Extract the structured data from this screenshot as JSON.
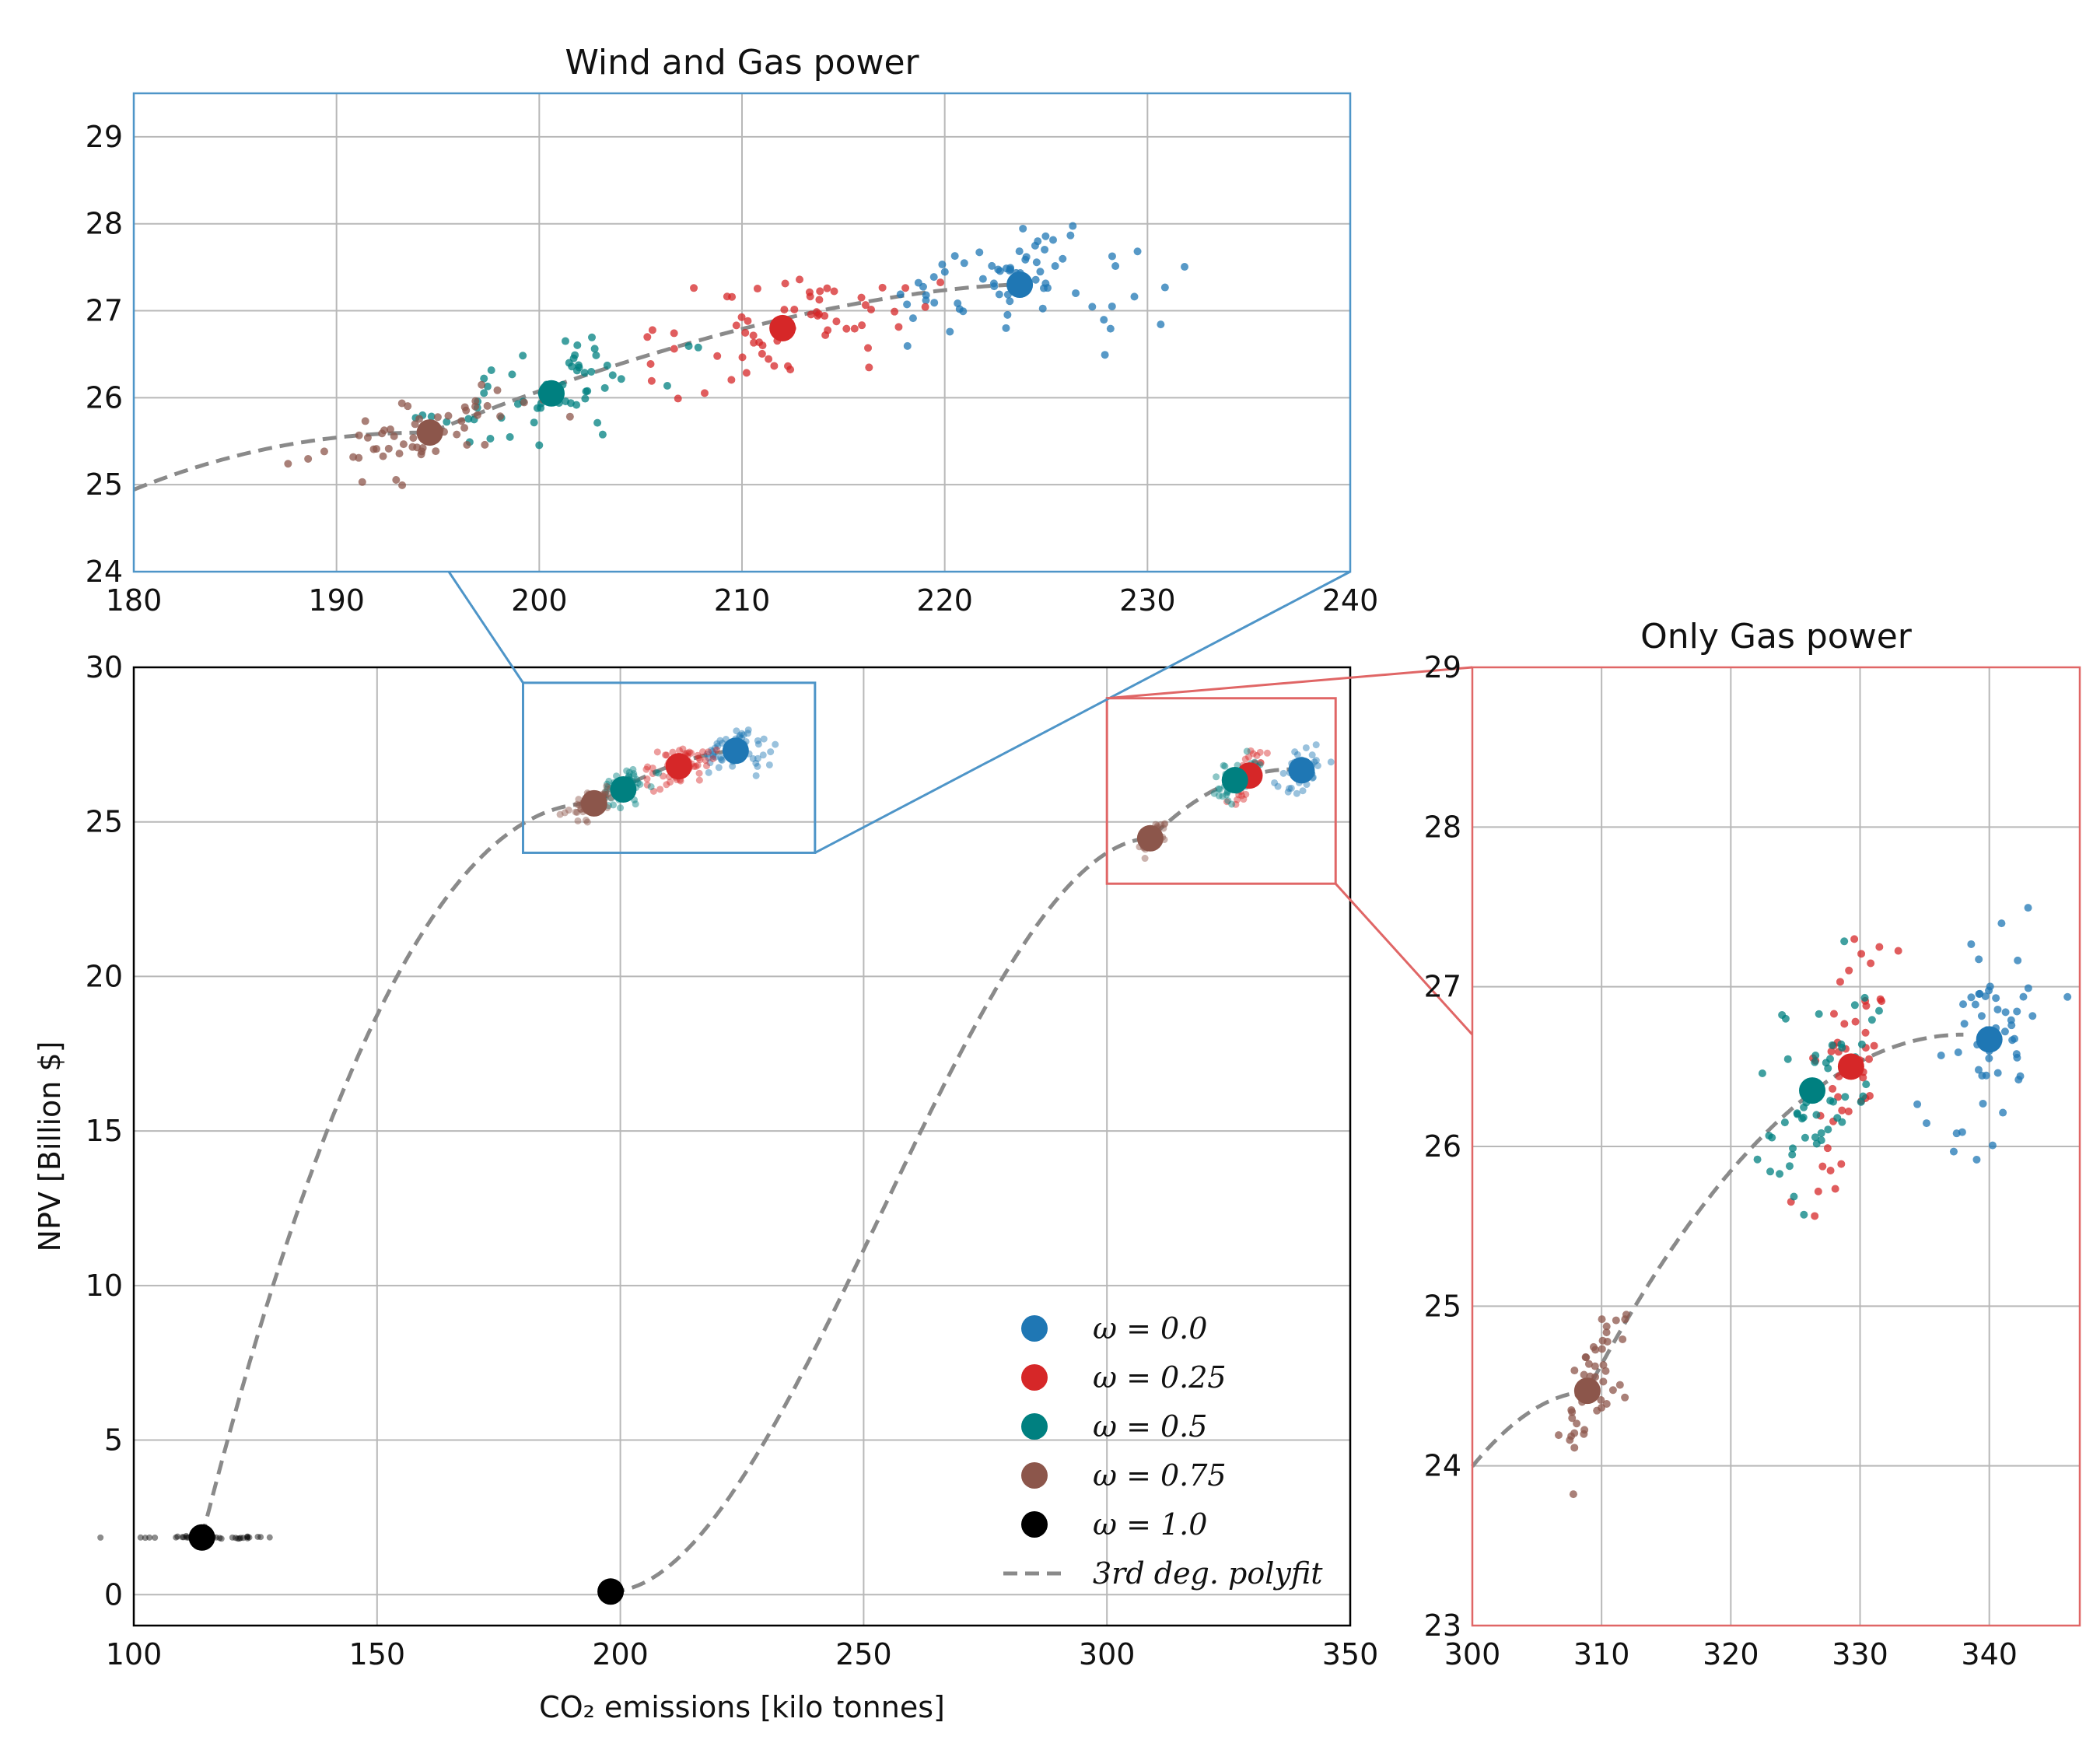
{
  "colors": {
    "w0": "#1f77b4",
    "w025": "#d62728",
    "w05": "#008080",
    "w075": "#8c564b",
    "w1": "#000000",
    "fit": "#8a8a8a",
    "inset_blue": "#4e95c8",
    "inset_red": "#e06666"
  },
  "chart_data": [
    {
      "type": "scatter",
      "panel": "main",
      "title": "",
      "xlabel": "CO₂ emissions [kilo tonnes]",
      "ylabel": "NPV [Billion $]",
      "xlim": [
        100,
        350
      ],
      "ylim": [
        -1,
        30
      ],
      "xticks": [
        100,
        150,
        200,
        250,
        300,
        350
      ],
      "yticks": [
        0,
        5,
        10,
        15,
        20,
        25,
        30
      ],
      "grid": true,
      "legend_position": "lower-right",
      "legend": [
        {
          "label": "ω = 0.0",
          "color_key": "w0"
        },
        {
          "label": "ω = 0.25",
          "color_key": "w025"
        },
        {
          "label": "ω = 0.5",
          "color_key": "w05"
        },
        {
          "label": "ω = 0.75",
          "color_key": "w075"
        },
        {
          "label": "ω = 1.0",
          "color_key": "w1"
        },
        {
          "label": "3rd deg. polyfit",
          "color_key": "fit"
        }
      ],
      "series": [
        {
          "name": "ω = 0.0",
          "group": "wind-gas",
          "mean": [
            223.7,
            27.3
          ]
        },
        {
          "name": "ω = 0.25",
          "group": "wind-gas",
          "mean": [
            212.0,
            26.8
          ]
        },
        {
          "name": "ω = 0.5",
          "group": "wind-gas",
          "mean": [
            200.6,
            26.05
          ]
        },
        {
          "name": "ω = 0.75",
          "group": "wind-gas",
          "mean": [
            194.6,
            25.6
          ]
        },
        {
          "name": "ω = 1.0",
          "group": "wind-gas",
          "mean": [
            114.0,
            1.85
          ]
        },
        {
          "name": "ω = 0.0",
          "group": "gas-only",
          "mean": [
            340.0,
            26.67
          ]
        },
        {
          "name": "ω = 0.25",
          "group": "gas-only",
          "mean": [
            329.3,
            26.5
          ]
        },
        {
          "name": "ω = 0.5",
          "group": "gas-only",
          "mean": [
            326.3,
            26.35
          ]
        },
        {
          "name": "ω = 0.75",
          "group": "gas-only",
          "mean": [
            308.9,
            24.47
          ]
        },
        {
          "name": "ω = 1.0",
          "group": "gas-only",
          "mean": [
            198.0,
            0.1
          ]
        }
      ],
      "zoom_boxes": [
        {
          "name": "Wind and Gas power",
          "x": [
            180,
            240
          ],
          "y": [
            24,
            29.5
          ]
        },
        {
          "name": "Only Gas power",
          "x": [
            300,
            347
          ],
          "y": [
            23,
            29
          ]
        }
      ]
    },
    {
      "type": "scatter",
      "panel": "inset-top",
      "title": "Wind and Gas power",
      "xlim": [
        180,
        240
      ],
      "ylim": [
        24,
        29.5
      ],
      "xticks": [
        180,
        190,
        200,
        210,
        220,
        230,
        240
      ],
      "yticks": [
        24,
        25,
        26,
        27,
        28,
        29
      ],
      "grid": true,
      "series": [
        {
          "name": "ω = 0.0",
          "mean": [
            223.7,
            27.3
          ]
        },
        {
          "name": "ω = 0.25",
          "mean": [
            212.0,
            26.8
          ]
        },
        {
          "name": "ω = 0.5",
          "mean": [
            200.6,
            26.05
          ]
        },
        {
          "name": "ω = 0.75",
          "mean": [
            194.6,
            25.6
          ]
        }
      ]
    },
    {
      "type": "scatter",
      "panel": "inset-right",
      "title": "Only Gas power",
      "xlim": [
        300,
        347
      ],
      "ylim": [
        23,
        29
      ],
      "xticks": [
        300,
        310,
        320,
        330,
        340
      ],
      "yticks": [
        23,
        24,
        25,
        26,
        27,
        28,
        29
      ],
      "grid": true,
      "series": [
        {
          "name": "ω = 0.0",
          "mean": [
            340.0,
            26.67
          ]
        },
        {
          "name": "ω = 0.25",
          "mean": [
            329.3,
            26.5
          ]
        },
        {
          "name": "ω = 0.5",
          "mean": [
            326.3,
            26.35
          ]
        },
        {
          "name": "ω = 0.75",
          "mean": [
            308.9,
            24.47
          ]
        }
      ]
    }
  ]
}
